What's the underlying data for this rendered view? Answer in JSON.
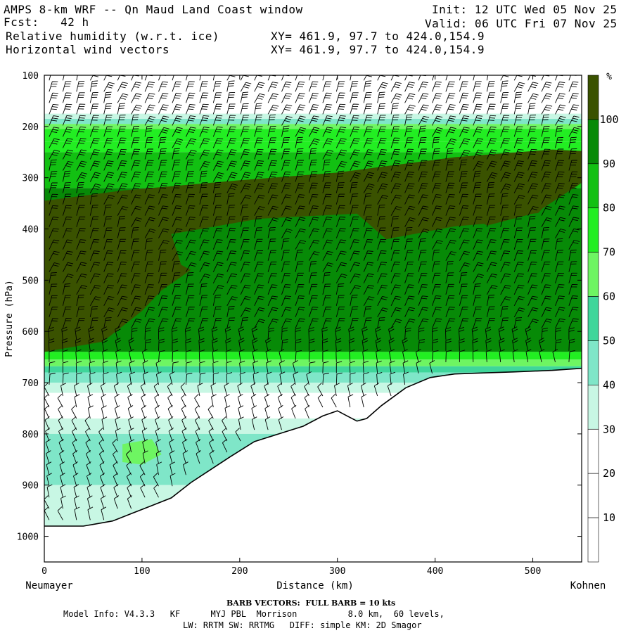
{
  "header": {
    "title": "AMPS 8-km WRF -- Qn Maud Land Coast window",
    "fcst": "Fcst:   42 h",
    "field1": "Relative humidity (w.r.t. ice)",
    "field2": "Horizontal wind vectors",
    "init": "Init: 12 UTC Wed 05 Nov 25",
    "valid": "Valid: 06 UTC Fri 07 Nov 25",
    "xy1": "XY= 461.9, 97.7 to 424.0,154.9",
    "xy2": "XY= 461.9, 97.7 to 424.0,154.9"
  },
  "footer": {
    "barb": "BARB VECTORS:  FULL BARB = 10 kts",
    "model1": "Model Info: V4.3.3   KF      MYJ PBL  Morrison          8.0 km,  60 levels,",
    "model2": "LW: RRTM SW: RRTMG   DIFF: simple KM: 2D Smagor"
  },
  "chart_data": {
    "type": "heatmap",
    "title": "Relative humidity (w.r.t. ice)",
    "xlabel": "Distance (km)",
    "ylabel": "Pressure (hPa)",
    "x_start_label": "Neumayer",
    "x_end_label": "Kohnen",
    "xlim": [
      0,
      550
    ],
    "ylim": [
      1050,
      100
    ],
    "x_ticks": [
      0,
      100,
      200,
      300,
      400,
      500
    ],
    "y_ticks": [
      100,
      200,
      300,
      400,
      500,
      600,
      700,
      800,
      900,
      1000
    ],
    "colorbar": {
      "unit": "%",
      "levels": [
        10,
        20,
        30,
        40,
        50,
        60,
        70,
        80,
        90,
        100
      ],
      "colors": [
        "#ffffff",
        "#ffffff",
        "#ffffff",
        "#c8f7e4",
        "#7fe6c8",
        "#3fd69a",
        "#6ef562",
        "#22ee22",
        "#12c012",
        "#078a07",
        "#3a5200"
      ]
    },
    "terrain_pressure": [
      [
        0,
        980
      ],
      [
        40,
        980
      ],
      [
        70,
        970
      ],
      [
        90,
        955
      ],
      [
        110,
        940
      ],
      [
        130,
        925
      ],
      [
        150,
        895
      ],
      [
        170,
        870
      ],
      [
        190,
        845
      ],
      [
        215,
        815
      ],
      [
        240,
        800
      ],
      [
        265,
        785
      ],
      [
        285,
        765
      ],
      [
        300,
        755
      ],
      [
        310,
        765
      ],
      [
        320,
        775
      ],
      [
        330,
        770
      ],
      [
        345,
        745
      ],
      [
        370,
        710
      ],
      [
        395,
        690
      ],
      [
        420,
        683
      ],
      [
        450,
        681
      ],
      [
        480,
        679
      ],
      [
        520,
        676
      ],
      [
        550,
        672
      ]
    ],
    "rh_regions": [
      {
        "level": 100,
        "polygon": [
          [
            0,
            345
          ],
          [
            80,
            325
          ],
          [
            200,
            305
          ],
          [
            300,
            290
          ],
          [
            420,
            260
          ],
          [
            520,
            245
          ],
          [
            550,
            248
          ],
          [
            550,
            310
          ],
          [
            510,
            360
          ],
          [
            480,
            420
          ],
          [
            430,
            440
          ],
          [
            400,
            455
          ],
          [
            340,
            470
          ],
          [
            300,
            500
          ],
          [
            250,
            500
          ],
          [
            180,
            480
          ],
          [
            150,
            480
          ],
          [
            120,
            520
          ],
          [
            100,
            560
          ],
          [
            60,
            620
          ],
          [
            0,
            640
          ]
        ]
      },
      {
        "level": 90,
        "polygon": [
          [
            130,
            410
          ],
          [
            220,
            380
          ],
          [
            320,
            370
          ],
          [
            350,
            420
          ],
          [
            420,
            395
          ],
          [
            450,
            390
          ],
          [
            480,
            420
          ],
          [
            470,
            470
          ],
          [
            420,
            490
          ],
          [
            380,
            500
          ],
          [
            330,
            520
          ],
          [
            300,
            520
          ],
          [
            260,
            520
          ],
          [
            200,
            515
          ],
          [
            170,
            500
          ],
          [
            140,
            470
          ]
        ]
      },
      {
        "level": 90,
        "polygon": [
          [
            440,
            400
          ],
          [
            500,
            370
          ],
          [
            550,
            360
          ],
          [
            550,
            400
          ],
          [
            500,
            420
          ],
          [
            460,
            440
          ]
        ]
      },
      {
        "level": 60,
        "polygon": [
          [
            80,
            820
          ],
          [
            110,
            810
          ],
          [
            120,
            840
          ],
          [
            100,
            860
          ],
          [
            80,
            855
          ]
        ]
      }
    ],
    "notes": "Vertical cross-section from Neumayer to Kohnen; moist layer (RH>90%) between ~300 and ~620 hPa; dry layer near 700-750 hPa; wind barbs overlaid"
  }
}
